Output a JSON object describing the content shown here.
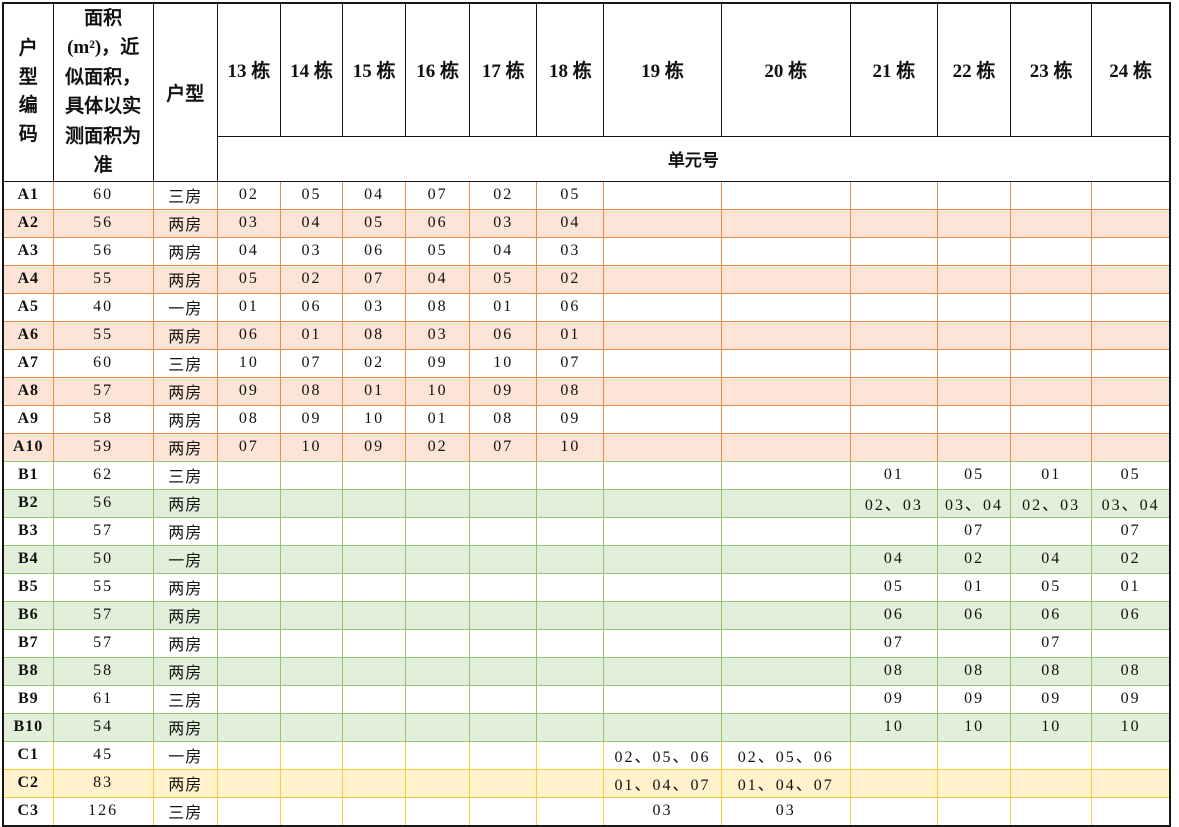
{
  "table": {
    "corner": {
      "code": "户型编码",
      "area": "面积(m²)，近似面积，具体以实测面积为准",
      "type": "户型"
    },
    "building_headers": [
      "13 栋",
      "14 栋",
      "15 栋",
      "16 栋",
      "17 栋",
      "18 栋",
      "19 栋",
      "20 栋",
      "21 栋",
      "22 栋",
      "23 栋",
      "24 栋"
    ],
    "unit_row_label": "单元号",
    "sections": [
      {
        "id": "A",
        "border_color": "#ED8C45",
        "fill": "#FCE4D6",
        "rows": [
          {
            "code": "A1",
            "area": "60",
            "type": "三房",
            "hl": false,
            "units": [
              "02",
              "05",
              "04",
              "07",
              "02",
              "05",
              "",
              "",
              "",
              "",
              "",
              ""
            ]
          },
          {
            "code": "A2",
            "area": "56",
            "type": "两房",
            "hl": true,
            "units": [
              "03",
              "04",
              "05",
              "06",
              "03",
              "04",
              "",
              "",
              "",
              "",
              "",
              ""
            ]
          },
          {
            "code": "A3",
            "area": "56",
            "type": "两房",
            "hl": false,
            "units": [
              "04",
              "03",
              "06",
              "05",
              "04",
              "03",
              "",
              "",
              "",
              "",
              "",
              ""
            ]
          },
          {
            "code": "A4",
            "area": "55",
            "type": "两房",
            "hl": true,
            "units": [
              "05",
              "02",
              "07",
              "04",
              "05",
              "02",
              "",
              "",
              "",
              "",
              "",
              ""
            ]
          },
          {
            "code": "A5",
            "area": "40",
            "type": "一房",
            "hl": false,
            "units": [
              "01",
              "06",
              "03",
              "08",
              "01",
              "06",
              "",
              "",
              "",
              "",
              "",
              ""
            ]
          },
          {
            "code": "A6",
            "area": "55",
            "type": "两房",
            "hl": true,
            "units": [
              "06",
              "01",
              "08",
              "03",
              "06",
              "01",
              "",
              "",
              "",
              "",
              "",
              ""
            ]
          },
          {
            "code": "A7",
            "area": "60",
            "type": "三房",
            "hl": false,
            "units": [
              "10",
              "07",
              "02",
              "09",
              "10",
              "07",
              "",
              "",
              "",
              "",
              "",
              ""
            ]
          },
          {
            "code": "A8",
            "area": "57",
            "type": "两房",
            "hl": true,
            "units": [
              "09",
              "08",
              "01",
              "10",
              "09",
              "08",
              "",
              "",
              "",
              "",
              "",
              ""
            ]
          },
          {
            "code": "A9",
            "area": "58",
            "type": "两房",
            "hl": false,
            "units": [
              "08",
              "09",
              "10",
              "01",
              "08",
              "09",
              "",
              "",
              "",
              "",
              "",
              ""
            ]
          },
          {
            "code": "A10",
            "area": "59",
            "type": "两房",
            "hl": true,
            "units": [
              "07",
              "10",
              "09",
              "02",
              "07",
              "10",
              "",
              "",
              "",
              "",
              "",
              ""
            ]
          }
        ]
      },
      {
        "id": "B",
        "border_color": "#93C572",
        "fill": "#E2EFDA",
        "rows": [
          {
            "code": "B1",
            "area": "62",
            "type": "三房",
            "hl": false,
            "units": [
              "",
              "",
              "",
              "",
              "",
              "",
              "",
              "",
              "01",
              "05",
              "01",
              "05"
            ]
          },
          {
            "code": "B2",
            "area": "56",
            "type": "两房",
            "hl": true,
            "units": [
              "",
              "",
              "",
              "",
              "",
              "",
              "",
              "",
              "02、03",
              "03、04",
              "02、03",
              "03、04"
            ]
          },
          {
            "code": "B3",
            "area": "57",
            "type": "两房",
            "hl": false,
            "units": [
              "",
              "",
              "",
              "",
              "",
              "",
              "",
              "",
              "",
              "07",
              "",
              "07"
            ]
          },
          {
            "code": "B4",
            "area": "50",
            "type": "一房",
            "hl": true,
            "units": [
              "",
              "",
              "",
              "",
              "",
              "",
              "",
              "",
              "04",
              "02",
              "04",
              "02"
            ]
          },
          {
            "code": "B5",
            "area": "55",
            "type": "两房",
            "hl": false,
            "units": [
              "",
              "",
              "",
              "",
              "",
              "",
              "",
              "",
              "05",
              "01",
              "05",
              "01"
            ]
          },
          {
            "code": "B6",
            "area": "57",
            "type": "两房",
            "hl": true,
            "units": [
              "",
              "",
              "",
              "",
              "",
              "",
              "",
              "",
              "06",
              "06",
              "06",
              "06"
            ]
          },
          {
            "code": "B7",
            "area": "57",
            "type": "两房",
            "hl": false,
            "units": [
              "",
              "",
              "",
              "",
              "",
              "",
              "",
              "",
              "07",
              "",
              "07",
              ""
            ]
          },
          {
            "code": "B8",
            "area": "58",
            "type": "两房",
            "hl": true,
            "units": [
              "",
              "",
              "",
              "",
              "",
              "",
              "",
              "",
              "08",
              "08",
              "08",
              "08"
            ]
          },
          {
            "code": "B9",
            "area": "61",
            "type": "三房",
            "hl": false,
            "units": [
              "",
              "",
              "",
              "",
              "",
              "",
              "",
              "",
              "09",
              "09",
              "09",
              "09"
            ]
          },
          {
            "code": "B10",
            "area": "54",
            "type": "两房",
            "hl": true,
            "units": [
              "",
              "",
              "",
              "",
              "",
              "",
              "",
              "",
              "10",
              "10",
              "10",
              "10"
            ]
          }
        ]
      },
      {
        "id": "C",
        "border_color": "#FFC933",
        "fill": "#FFF2CC",
        "rows": [
          {
            "code": "C1",
            "area": "45",
            "type": "一房",
            "hl": false,
            "units": [
              "",
              "",
              "",
              "",
              "",
              "",
              "02、05、06",
              "02、05、06",
              "",
              "",
              "",
              ""
            ]
          },
          {
            "code": "C2",
            "area": "83",
            "type": "两房",
            "hl": true,
            "units": [
              "",
              "",
              "",
              "",
              "",
              "",
              "01、04、07",
              "01、04、07",
              "",
              "",
              "",
              ""
            ]
          },
          {
            "code": "C3",
            "area": "126",
            "type": "三房",
            "hl": false,
            "units": [
              "",
              "",
              "",
              "",
              "",
              "",
              "03",
              "03",
              "",
              "",
              "",
              ""
            ]
          }
        ]
      }
    ]
  }
}
